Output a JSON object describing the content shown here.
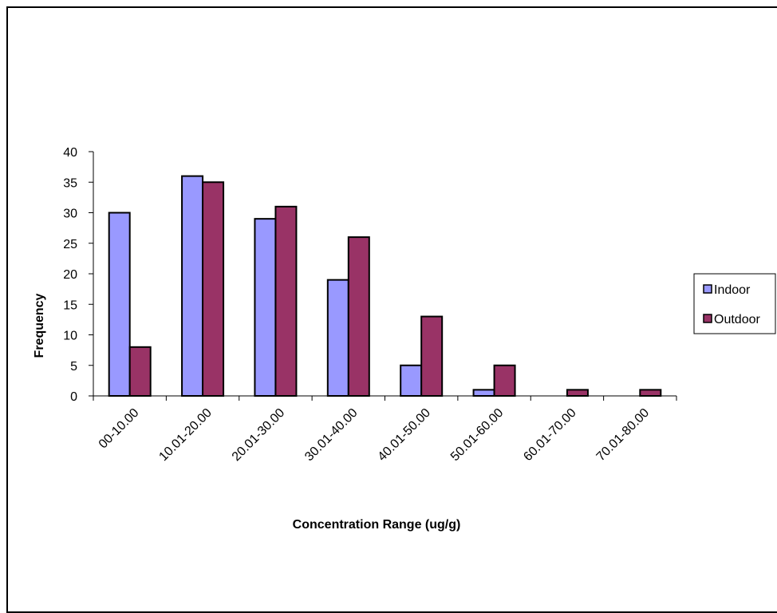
{
  "chart_data": {
    "type": "bar",
    "title": "",
    "xlabel": "Concentration Range (ug/g)",
    "ylabel": "Frequency",
    "ylim": [
      0,
      40
    ],
    "yticks": [
      0,
      5,
      10,
      15,
      20,
      25,
      30,
      35,
      40
    ],
    "categories": [
      "00-10.00",
      "10.01-20.00",
      "20.01-30.00",
      "30.01-40.00",
      "40.01-50.00",
      "50.01-60.00",
      "60.01-70.00",
      "70.01-80.00"
    ],
    "series": [
      {
        "name": "Indoor",
        "values": [
          30,
          36,
          29,
          19,
          5,
          1,
          0,
          0
        ],
        "color": "#9999ff"
      },
      {
        "name": "Outdoor",
        "values": [
          8,
          35,
          31,
          26,
          13,
          5,
          1,
          1
        ],
        "color": "#993366"
      }
    ],
    "grid": false,
    "legend_position": "right"
  }
}
